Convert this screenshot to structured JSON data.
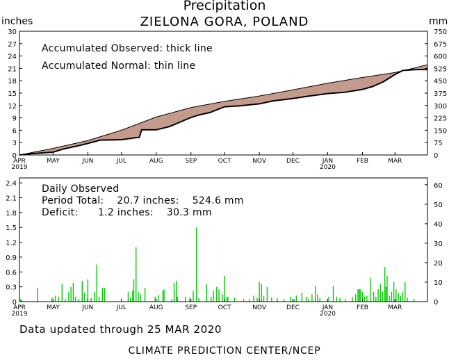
{
  "header": {
    "title": "Precipitation",
    "location": "ZIELONA GORA, POLAND",
    "left_unit": "inches",
    "right_unit": "mm"
  },
  "top_panel": {
    "legend_observed": "Accumulated Observed: thick line",
    "legend_normal": "Accumulated Normal: thin line"
  },
  "bottom_panel": {
    "label": "Daily Observed",
    "total_line": "Period Total:    20.7 inches:    524.6 mm",
    "deficit_line": "Deficit:      1.2 inches:    30.3 mm"
  },
  "footer": {
    "updated": "Data updated through 25 MAR 2020",
    "credit": "CLIMATE PREDICTION CENTER/NCEP"
  },
  "colors": {
    "deficit_fill": "#c49a8c",
    "bar": "#00cc00",
    "line": "#000000"
  },
  "chart_data": [
    {
      "type": "area",
      "title": "",
      "x_axis": {
        "unit": "days since 1 APR 2019",
        "range": [
          0,
          364
        ],
        "tick_labels": [
          {
            "day": 0,
            "label": "APR",
            "sublabel": "2019"
          },
          {
            "day": 30,
            "label": "MAY"
          },
          {
            "day": 61,
            "label": "JUN"
          },
          {
            "day": 91,
            "label": "JUL"
          },
          {
            "day": 122,
            "label": "AUG"
          },
          {
            "day": 153,
            "label": "SEP"
          },
          {
            "day": 183,
            "label": "OCT"
          },
          {
            "day": 214,
            "label": "NOV"
          },
          {
            "day": 244,
            "label": "DEC"
          },
          {
            "day": 275,
            "label": "JAN",
            "sublabel": "2020"
          },
          {
            "day": 306,
            "label": "FEB"
          },
          {
            "day": 335,
            "label": "MAR"
          }
        ]
      },
      "y_left": {
        "label": "inches",
        "range": [
          0,
          30
        ],
        "ticks": [
          0,
          3,
          6,
          9,
          12,
          15,
          18,
          21,
          24,
          27,
          30
        ]
      },
      "y_right": {
        "label": "mm",
        "range": [
          0,
          750
        ],
        "ticks": [
          0,
          75,
          150,
          225,
          300,
          375,
          450,
          525,
          600,
          675,
          750
        ]
      },
      "series": [
        {
          "name": "Accumulated Normal",
          "style": "thin line",
          "points": [
            [
              0,
              0
            ],
            [
              30,
              1.6
            ],
            [
              61,
              3.5
            ],
            [
              91,
              6.0
            ],
            [
              122,
              9.2
            ],
            [
              153,
              11.5
            ],
            [
              183,
              13.0
            ],
            [
              214,
              14.3
            ],
            [
              244,
              15.8
            ],
            [
              275,
              17.4
            ],
            [
              306,
              18.8
            ],
            [
              335,
              20.0
            ],
            [
              354,
              21.2
            ],
            [
              364,
              21.9
            ]
          ]
        },
        {
          "name": "Accumulated Observed",
          "style": "thick line",
          "points": [
            [
              0,
              0
            ],
            [
              10,
              0.3
            ],
            [
              30,
              0.7
            ],
            [
              40,
              1.5
            ],
            [
              52,
              2.2
            ],
            [
              61,
              2.8
            ],
            [
              72,
              3.6
            ],
            [
              91,
              3.7
            ],
            [
              107,
              4.3
            ],
            [
              109,
              6.1
            ],
            [
              122,
              6.1
            ],
            [
              134,
              6.9
            ],
            [
              153,
              9.1
            ],
            [
              160,
              9.7
            ],
            [
              170,
              10.3
            ],
            [
              183,
              11.7
            ],
            [
              196,
              11.9
            ],
            [
              214,
              12.4
            ],
            [
              226,
              13.1
            ],
            [
              244,
              13.7
            ],
            [
              256,
              14.2
            ],
            [
              275,
              14.9
            ],
            [
              290,
              15.2
            ],
            [
              306,
              15.9
            ],
            [
              315,
              16.6
            ],
            [
              325,
              17.8
            ],
            [
              335,
              19.5
            ],
            [
              342,
              20.5
            ],
            [
              354,
              20.7
            ],
            [
              364,
              20.7
            ]
          ]
        }
      ]
    },
    {
      "type": "bar",
      "title": "",
      "x_axis": {
        "unit": "days since 1 APR 2019",
        "range": [
          0,
          364
        ]
      },
      "y_left": {
        "label": "inches",
        "range": [
          0,
          2.5
        ],
        "ticks": [
          0,
          0.3,
          0.6,
          0.9,
          1.2,
          1.5,
          1.8,
          2.1,
          2.4
        ]
      },
      "y_right": {
        "label": "mm",
        "range": [
          0,
          63.5
        ],
        "ticks": [
          0,
          10,
          20,
          30,
          40,
          50,
          60
        ]
      },
      "series": [
        {
          "name": "Daily Observed",
          "values_inches": [
            [
              1,
              0.05
            ],
            [
              2,
              0.03
            ],
            [
              16,
              0.28
            ],
            [
              29,
              0.08
            ],
            [
              32,
              0.12
            ],
            [
              35,
              0.1
            ],
            [
              38,
              0.35
            ],
            [
              41,
              0.05
            ],
            [
              44,
              0.2
            ],
            [
              46,
              0.3
            ],
            [
              48,
              0.38
            ],
            [
              50,
              0.1
            ],
            [
              53,
              0.06
            ],
            [
              56,
              0.42
            ],
            [
              58,
              0.18
            ],
            [
              61,
              0.45
            ],
            [
              64,
              0.07
            ],
            [
              67,
              0.2
            ],
            [
              69,
              0.75
            ],
            [
              71,
              0.1
            ],
            [
              74,
              0.28
            ],
            [
              76,
              0.28
            ],
            [
              97,
              0.2
            ],
            [
              99,
              0.08
            ],
            [
              101,
              0.22
            ],
            [
              102,
              0.45
            ],
            [
              104,
              1.1
            ],
            [
              106,
              0.2
            ],
            [
              108,
              0.15
            ],
            [
              112,
              0.28
            ],
            [
              121,
              0.1
            ],
            [
              124,
              0.13
            ],
            [
              128,
              0.22
            ],
            [
              129,
              0.25
            ],
            [
              136,
              0.05
            ],
            [
              138,
              0.38
            ],
            [
              140,
              0.42
            ],
            [
              141,
              0.1
            ],
            [
              148,
              0.1
            ],
            [
              152,
              0.08
            ],
            [
              155,
              0.22
            ],
            [
              158,
              1.5
            ],
            [
              160,
              0.07
            ],
            [
              167,
              0.35
            ],
            [
              171,
              0.1
            ],
            [
              173,
              0.22
            ],
            [
              176,
              0.3
            ],
            [
              178,
              0.25
            ],
            [
              181,
              0.15
            ],
            [
              183,
              0.52
            ],
            [
              185,
              0.08
            ],
            [
              186,
              0.1
            ],
            [
              192,
              0.08
            ],
            [
              200,
              0.05
            ],
            [
              205,
              0.05
            ],
            [
              209,
              0.12
            ],
            [
              212,
              0.08
            ],
            [
              214,
              0.4
            ],
            [
              216,
              0.35
            ],
            [
              218,
              0.12
            ],
            [
              221,
              0.3
            ],
            [
              225,
              0.08
            ],
            [
              230,
              0.07
            ],
            [
              236,
              0.05
            ],
            [
              242,
              0.1
            ],
            [
              245,
              0.05
            ],
            [
              247,
              0.12
            ],
            [
              252,
              0.18
            ],
            [
              256,
              0.1
            ],
            [
              258,
              0.06
            ],
            [
              261,
              0.15
            ],
            [
              264,
              0.32
            ],
            [
              266,
              0.15
            ],
            [
              268,
              0.07
            ],
            [
              276,
              0.1
            ],
            [
              280,
              0.32
            ],
            [
              283,
              0.1
            ],
            [
              286,
              0.07
            ],
            [
              291,
              0.05
            ],
            [
              297,
              0.1
            ],
            [
              300,
              0.15
            ],
            [
              302,
              0.25
            ],
            [
              303,
              0.25
            ],
            [
              304,
              0.25
            ],
            [
              306,
              0.2
            ],
            [
              308,
              0.1
            ],
            [
              310,
              0.12
            ],
            [
              313,
              0.48
            ],
            [
              316,
              0.2
            ],
            [
              318,
              0.1
            ],
            [
              320,
              0.25
            ],
            [
              322,
              0.35
            ],
            [
              324,
              0.2
            ],
            [
              326,
              0.7
            ],
            [
              327,
              0.3
            ],
            [
              328,
              0.52
            ],
            [
              330,
              0.12
            ],
            [
              332,
              0.2
            ],
            [
              334,
              0.4
            ],
            [
              336,
              0.25
            ],
            [
              338,
              0.18
            ],
            [
              340,
              0.12
            ],
            [
              342,
              0.2
            ],
            [
              344,
              0.4
            ],
            [
              346,
              0.08
            ],
            [
              352,
              0.05
            ]
          ]
        }
      ]
    }
  ]
}
